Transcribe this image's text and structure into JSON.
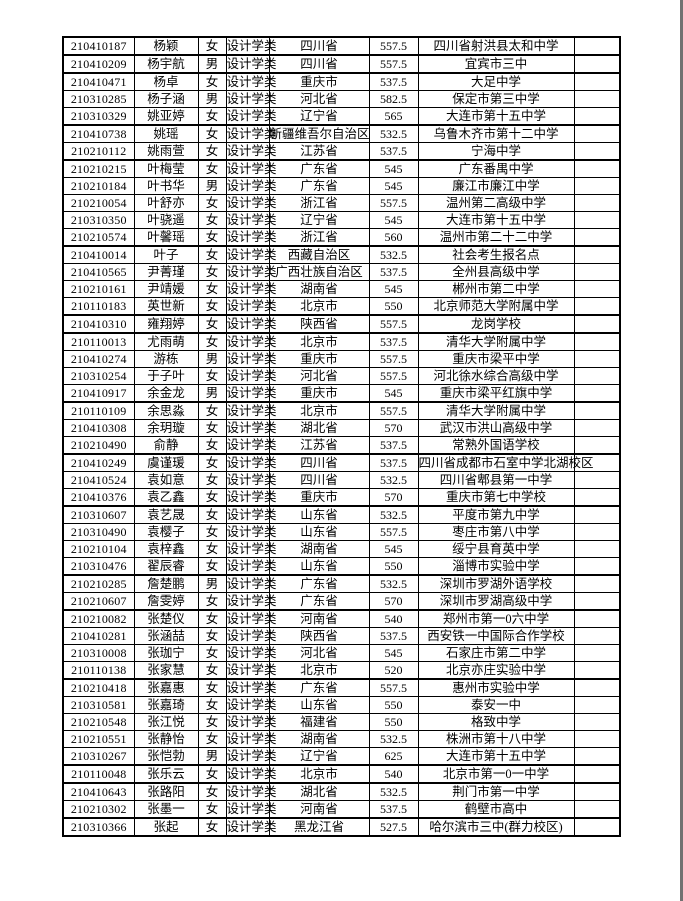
{
  "page": {
    "background_color": "#ffffff",
    "right_edge_color": "#717171",
    "text_color": "#000000",
    "border_color": "#000000"
  },
  "chart_data": {
    "type": "table",
    "title": "",
    "columns_structure": [
      "exam_id",
      "name",
      "gender",
      "major",
      "province",
      "score",
      "school",
      "blank"
    ],
    "rows": [
      [
        "210410187",
        "杨颖",
        "女",
        "设计学类",
        "四川省",
        "557.5",
        "四川省射洪县太和中学",
        ""
      ],
      [
        "210410209",
        "杨宇航",
        "男",
        "设计学类",
        "四川省",
        "557.5",
        "宜宾市三中",
        ""
      ],
      [
        "210410471",
        "杨卓",
        "女",
        "设计学类",
        "重庆市",
        "537.5",
        "大足中学",
        ""
      ],
      [
        "210310285",
        "杨子涵",
        "男",
        "设计学类",
        "河北省",
        "582.5",
        "保定市第三中学",
        ""
      ],
      [
        "210310329",
        "姚亚婷",
        "女",
        "设计学类",
        "辽宁省",
        "565",
        "大连市第十五中学",
        ""
      ],
      [
        "210410738",
        "姚瑶",
        "女",
        "设计学类",
        "新疆维吾尔自治区",
        "532.5",
        "乌鲁木齐市第十二中学",
        ""
      ],
      [
        "210210112",
        "姚雨萱",
        "女",
        "设计学类",
        "江苏省",
        "537.5",
        "宁海中学",
        ""
      ],
      [
        "210210215",
        "叶梅莹",
        "女",
        "设计学类",
        "广东省",
        "545",
        "广东番禺中学",
        ""
      ],
      [
        "210210184",
        "叶书华",
        "男",
        "设计学类",
        "广东省",
        "545",
        "廉江市廉江中学",
        ""
      ],
      [
        "210210054",
        "叶舒亦",
        "女",
        "设计学类",
        "浙江省",
        "557.5",
        "温州第二高级中学",
        ""
      ],
      [
        "210310350",
        "叶骁遥",
        "女",
        "设计学类",
        "辽宁省",
        "545",
        "大连市第十五中学",
        ""
      ],
      [
        "210210574",
        "叶馨瑶",
        "女",
        "设计学类",
        "浙江省",
        "560",
        "温州市第二十二中学",
        ""
      ],
      [
        "210410014",
        "叶子",
        "女",
        "设计学类",
        "西藏自治区",
        "532.5",
        "社会考生报名点",
        ""
      ],
      [
        "210410565",
        "尹菁瑾",
        "女",
        "设计学类",
        "广西壮族自治区",
        "537.5",
        "全州县高级中学",
        ""
      ],
      [
        "210210161",
        "尹靖媛",
        "女",
        "设计学类",
        "湖南省",
        "545",
        "郴州市第二中学",
        ""
      ],
      [
        "210110183",
        "英世新",
        "女",
        "设计学类",
        "北京市",
        "550",
        "北京师范大学附属中学",
        ""
      ],
      [
        "210410310",
        "雍翔婷",
        "女",
        "设计学类",
        "陕西省",
        "557.5",
        "龙岗学校",
        ""
      ],
      [
        "210110013",
        "尤雨萌",
        "女",
        "设计学类",
        "北京市",
        "537.5",
        "清华大学附属中学",
        ""
      ],
      [
        "210410274",
        "游栋",
        "男",
        "设计学类",
        "重庆市",
        "557.5",
        "重庆市梁平中学",
        ""
      ],
      [
        "210310254",
        "于子叶",
        "女",
        "设计学类",
        "河北省",
        "557.5",
        "河北徐水综合高级中学",
        ""
      ],
      [
        "210410917",
        "余金龙",
        "男",
        "设计学类",
        "重庆市",
        "545",
        "重庆市梁平红旗中学",
        ""
      ],
      [
        "210110109",
        "余思淼",
        "女",
        "设计学类",
        "北京市",
        "557.5",
        "清华大学附属中学",
        ""
      ],
      [
        "210410308",
        "余玥璇",
        "女",
        "设计学类",
        "湖北省",
        "570",
        "武汉市洪山高级中学",
        ""
      ],
      [
        "210210490",
        "俞静",
        "女",
        "设计学类",
        "江苏省",
        "537.5",
        "常熟外国语学校",
        ""
      ],
      [
        "210410249",
        "虞谨瑗",
        "女",
        "设计学类",
        "四川省",
        "537.5",
        "四川省成都市石室中学北湖校区",
        ""
      ],
      [
        "210410524",
        "袁如意",
        "女",
        "设计学类",
        "四川省",
        "532.5",
        "四川省郫县第一中学",
        ""
      ],
      [
        "210410376",
        "袁乙鑫",
        "女",
        "设计学类",
        "重庆市",
        "570",
        "重庆市第七中学校",
        ""
      ],
      [
        "210310607",
        "袁艺晟",
        "女",
        "设计学类",
        "山东省",
        "532.5",
        "平度市第九中学",
        ""
      ],
      [
        "210310490",
        "袁樱子",
        "女",
        "设计学类",
        "山东省",
        "557.5",
        "枣庄市第八中学",
        ""
      ],
      [
        "210210104",
        "袁梓鑫",
        "女",
        "设计学类",
        "湖南省",
        "545",
        "绥宁县育英中学",
        ""
      ],
      [
        "210310476",
        "翟辰睿",
        "女",
        "设计学类",
        "山东省",
        "550",
        "淄博市实验中学",
        ""
      ],
      [
        "210210285",
        "詹楚鹏",
        "男",
        "设计学类",
        "广东省",
        "532.5",
        "深圳市罗湖外语学校",
        ""
      ],
      [
        "210210607",
        "詹雯婷",
        "女",
        "设计学类",
        "广东省",
        "570",
        "深圳市罗湖高级中学",
        ""
      ],
      [
        "210210082",
        "张楚仪",
        "女",
        "设计学类",
        "河南省",
        "540",
        "郑州市第一0六中学",
        ""
      ],
      [
        "210410281",
        "张涵喆",
        "女",
        "设计学类",
        "陕西省",
        "537.5",
        "西安铁一中国际合作学校",
        ""
      ],
      [
        "210310008",
        "张珈宁",
        "女",
        "设计学类",
        "河北省",
        "545",
        "石家庄市第二中学",
        ""
      ],
      [
        "210110138",
        "张家慧",
        "女",
        "设计学类",
        "北京市",
        "520",
        "北京亦庄实验中学",
        ""
      ],
      [
        "210210418",
        "张嘉惠",
        "女",
        "设计学类",
        "广东省",
        "557.5",
        "惠州市实验中学",
        ""
      ],
      [
        "210310581",
        "张嘉琦",
        "女",
        "设计学类",
        "山东省",
        "550",
        "泰安一中",
        ""
      ],
      [
        "210210548",
        "张江悦",
        "女",
        "设计学类",
        "福建省",
        "550",
        "格致中学",
        ""
      ],
      [
        "210210551",
        "张静怡",
        "女",
        "设计学类",
        "湖南省",
        "532.5",
        "株洲市第十八中学",
        ""
      ],
      [
        "210310267",
        "张恺勃",
        "男",
        "设计学类",
        "辽宁省",
        "625",
        "大连市第十五中学",
        ""
      ],
      [
        "210110048",
        "张乐云",
        "女",
        "设计学类",
        "北京市",
        "540",
        "北京市第一0一中学",
        ""
      ],
      [
        "210410643",
        "张路阳",
        "女",
        "设计学类",
        "湖北省",
        "532.5",
        "荆门市第一中学",
        ""
      ],
      [
        "210210302",
        "张墨一",
        "女",
        "设计学类",
        "河南省",
        "537.5",
        "鹤壁市高中",
        ""
      ],
      [
        "210310366",
        "张起",
        "女",
        "设计学类",
        "黑龙江省",
        "527.5",
        "哈尔滨市三中(群力校区)",
        ""
      ]
    ]
  }
}
